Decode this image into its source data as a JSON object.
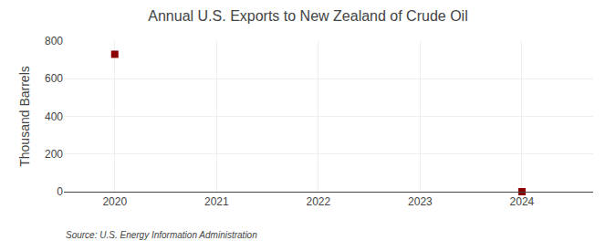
{
  "chart_data": {
    "type": "scatter",
    "title": "Annual U.S. Exports to New Zealand of Crude Oil",
    "ylabel": "Thousand Barrels",
    "annotations": [
      "Source: U.S. Energy Information Administration"
    ],
    "x": [
      2020,
      2024
    ],
    "values": [
      730,
      0
    ],
    "color": "#8b0000",
    "marker": "square",
    "xlim": [
      2019.5,
      2024.7
    ],
    "ylim": [
      0,
      800
    ],
    "xticks": [
      2020,
      2021,
      2022,
      2023,
      2024
    ],
    "yticks": [
      0,
      200,
      400,
      600,
      800
    ],
    "grid": true
  }
}
